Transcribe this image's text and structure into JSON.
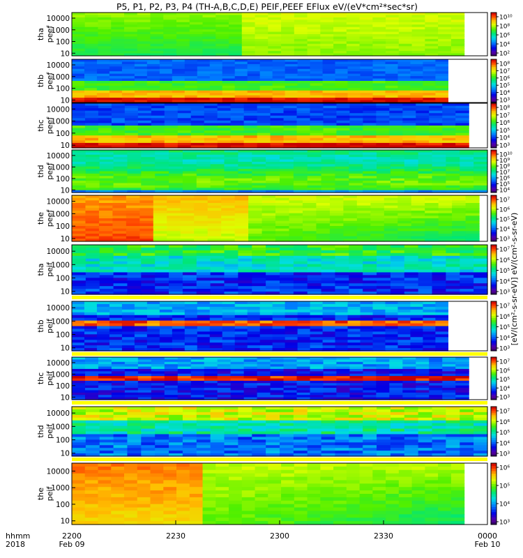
{
  "figure_title": "P5, P1, P2, P3, P4 (TH-A,B,C,D,E) PEIF,PEEF EFlux eV/(eV*cm²*sec*sr)",
  "bottom_axis": {
    "row1_label": "hhmm",
    "row2_label": "2018",
    "tick_labels": [
      "2200",
      "2230",
      "2300",
      "2330",
      "0000"
    ],
    "date_labels": [
      "Feb 09",
      "",
      "",
      "",
      "Feb 10"
    ]
  },
  "colorbar_title": "[eV/(cm²-s-sr-eV)] eV/(cm²-s-sr-eV)",
  "colors": {
    "frame": "#000000",
    "background": "#ffffff",
    "gap_band": "#ffff00"
  },
  "chart_data": [
    {
      "type": "heatmap",
      "panel": "tha-peef",
      "ylabel_line1": "tha",
      "ylabel_line2": "peef",
      "yticks": [
        "10000",
        "1000",
        "100",
        "10"
      ],
      "x_range": [
        "22:00",
        "00:00"
      ],
      "y_range_eV": [
        6,
        30000
      ],
      "y_scale": "log",
      "colorbar": {
        "ticks": [
          "10²",
          "10⁴",
          "10⁶",
          "10⁸",
          "10¹⁰"
        ],
        "min_exp": 2,
        "max_exp": 10
      },
      "data_end_fraction": 0.944,
      "profile": "tha_e"
    },
    {
      "type": "heatmap",
      "panel": "thb-peef",
      "ylabel_line1": "thb",
      "ylabel_line2": "peef",
      "yticks": [
        "10000",
        "1000",
        "100",
        "10"
      ],
      "x_range": [
        "22:00",
        "00:00"
      ],
      "y_range_eV": [
        6,
        30000
      ],
      "y_scale": "log",
      "colorbar": {
        "ticks": [
          "10³",
          "10⁴",
          "10⁵",
          "10⁶",
          "10⁷",
          "10⁸"
        ],
        "min_exp": 3,
        "max_exp": 8
      },
      "data_end_fraction": 0.905,
      "profile": "thb_e"
    },
    {
      "type": "heatmap",
      "panel": "thc-peef",
      "ylabel_line1": "thc",
      "ylabel_line2": "peef",
      "yticks": [
        "10000",
        "1000",
        "100",
        "10"
      ],
      "x_range": [
        "22:00",
        "00:00"
      ],
      "y_range_eV": [
        6,
        30000
      ],
      "y_scale": "log",
      "colorbar": {
        "ticks": [
          "10³",
          "10⁴",
          "10⁵",
          "10⁶",
          "10⁷",
          "10⁸"
        ],
        "min_exp": 3,
        "max_exp": 8
      },
      "data_end_fraction": 0.955,
      "profile": "thc_e"
    },
    {
      "type": "heatmap",
      "panel": "thd-peef",
      "ylabel_line1": "thd",
      "ylabel_line2": "peef",
      "yticks": [
        "10000",
        "1000",
        "100",
        "10"
      ],
      "x_range": [
        "22:00",
        "00:00"
      ],
      "y_range_eV": [
        6,
        30000
      ],
      "y_scale": "log",
      "colorbar": {
        "ticks": [
          "10⁴",
          "10⁵",
          "10⁶",
          "10⁷",
          "10⁸",
          "10⁹",
          "10¹⁰"
        ],
        "min_exp": 3,
        "max_exp": 10
      },
      "data_end_fraction": 1.0,
      "profile": "thd_e"
    },
    {
      "type": "heatmap",
      "panel": "the-peef",
      "ylabel_line1": "the",
      "ylabel_line2": "peef",
      "yticks": [
        "10000",
        "1000",
        "100",
        "10"
      ],
      "x_range": [
        "22:00",
        "00:00"
      ],
      "y_range_eV": [
        6,
        30000
      ],
      "y_scale": "log",
      "colorbar": {
        "ticks": [
          "10³",
          "10⁴",
          "10⁵",
          "10⁶",
          "10⁷"
        ],
        "min_exp": 3,
        "max_exp": 7
      },
      "data_end_fraction": 0.98,
      "profile": "the_e"
    },
    {
      "type": "heatmap",
      "panel": "tha-peif",
      "ylabel_line1": "tha",
      "ylabel_line2": "peif",
      "yticks": [
        "10000",
        "1000",
        "100",
        "10"
      ],
      "x_range": [
        "22:00",
        "00:00"
      ],
      "y_range_eV": [
        6,
        30000
      ],
      "y_scale": "log",
      "colorbar": {
        "ticks": [
          "10³",
          "10⁴",
          "10⁵",
          "10⁶",
          "10⁷"
        ],
        "min_exp": 3,
        "max_exp": 7
      },
      "data_end_fraction": 1.0,
      "profile": "tha_i"
    },
    {
      "type": "heatmap",
      "panel": "thb-peif",
      "ylabel_line1": "thb",
      "ylabel_line2": "peif",
      "yticks": [
        "10000",
        "1000",
        "100",
        "10"
      ],
      "x_range": [
        "22:00",
        "00:00"
      ],
      "y_range_eV": [
        6,
        30000
      ],
      "y_scale": "log",
      "colorbar": {
        "ticks": [
          "10³",
          "10⁴",
          "10⁵",
          "10⁶",
          "10⁷"
        ],
        "min_exp": 3,
        "max_exp": 7
      },
      "data_end_fraction": 0.905,
      "profile": "thb_i"
    },
    {
      "type": "heatmap",
      "panel": "thc-peif",
      "ylabel_line1": "thc",
      "ylabel_line2": "peif",
      "yticks": [
        "10000",
        "1000",
        "100",
        "10"
      ],
      "x_range": [
        "22:00",
        "00:00"
      ],
      "y_range_eV": [
        6,
        30000
      ],
      "y_scale": "log",
      "colorbar": {
        "ticks": [
          "10³",
          "10⁴",
          "10⁵",
          "10⁶",
          "10⁷"
        ],
        "min_exp": 3,
        "max_exp": 7
      },
      "data_end_fraction": 0.955,
      "profile": "thc_i"
    },
    {
      "type": "heatmap",
      "panel": "thd-peif",
      "ylabel_line1": "thd",
      "ylabel_line2": "peif",
      "yticks": [
        "10000",
        "1000",
        "100",
        "10"
      ],
      "x_range": [
        "22:00",
        "00:00"
      ],
      "y_range_eV": [
        6,
        30000
      ],
      "y_scale": "log",
      "colorbar": {
        "ticks": [
          "10³",
          "10⁴",
          "10⁵",
          "10⁶",
          "10⁷"
        ],
        "min_exp": 3,
        "max_exp": 7
      },
      "data_end_fraction": 1.0,
      "profile": "thd_i"
    },
    {
      "type": "heatmap",
      "panel": "the-peif",
      "ylabel_line1": "the",
      "ylabel_line2": "peif",
      "yticks": [
        "10000",
        "1000",
        "100",
        "10"
      ],
      "x_range": [
        "22:00",
        "00:00"
      ],
      "y_range_eV": [
        6,
        30000
      ],
      "y_scale": "log",
      "colorbar": {
        "ticks": [
          "10³",
          "10⁴",
          "10⁵",
          "10⁶"
        ],
        "min_exp": 3,
        "max_exp": 6
      },
      "data_end_fraction": 0.944,
      "profile": "the_i"
    }
  ]
}
